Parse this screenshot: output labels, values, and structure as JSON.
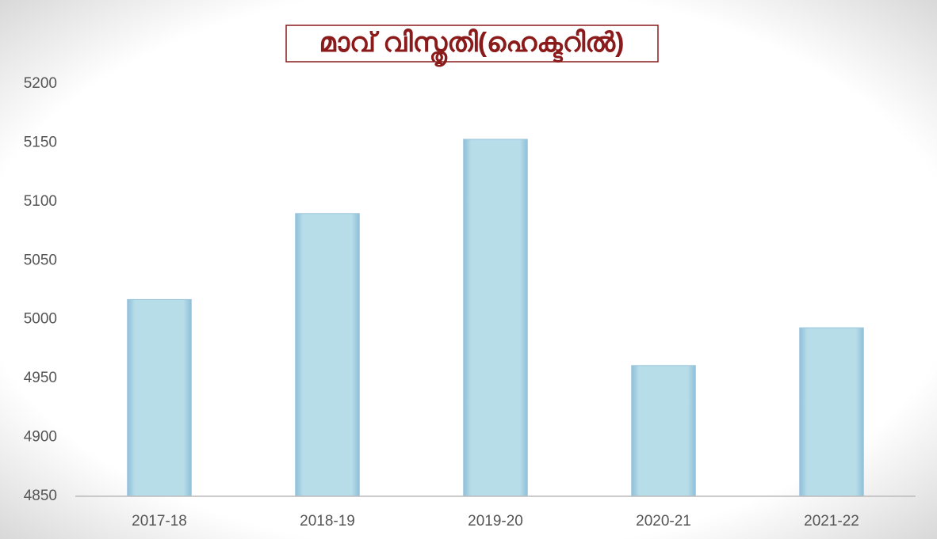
{
  "chart_data": {
    "type": "bar",
    "title": "മാവ്  വിസ്തൃതി(ഹെക്ടറിൽ)",
    "categories": [
      "2017-18",
      "2018-19",
      "2019-20",
      "2020-21",
      "2021-22"
    ],
    "values": [
      5017,
      5090,
      5153,
      4961,
      4993
    ],
    "color": "#b7dde8",
    "ylim": [
      4850,
      5200
    ],
    "yticks": [
      4850,
      4900,
      4950,
      5000,
      5050,
      5100,
      5150,
      5200
    ],
    "grid": false
  }
}
